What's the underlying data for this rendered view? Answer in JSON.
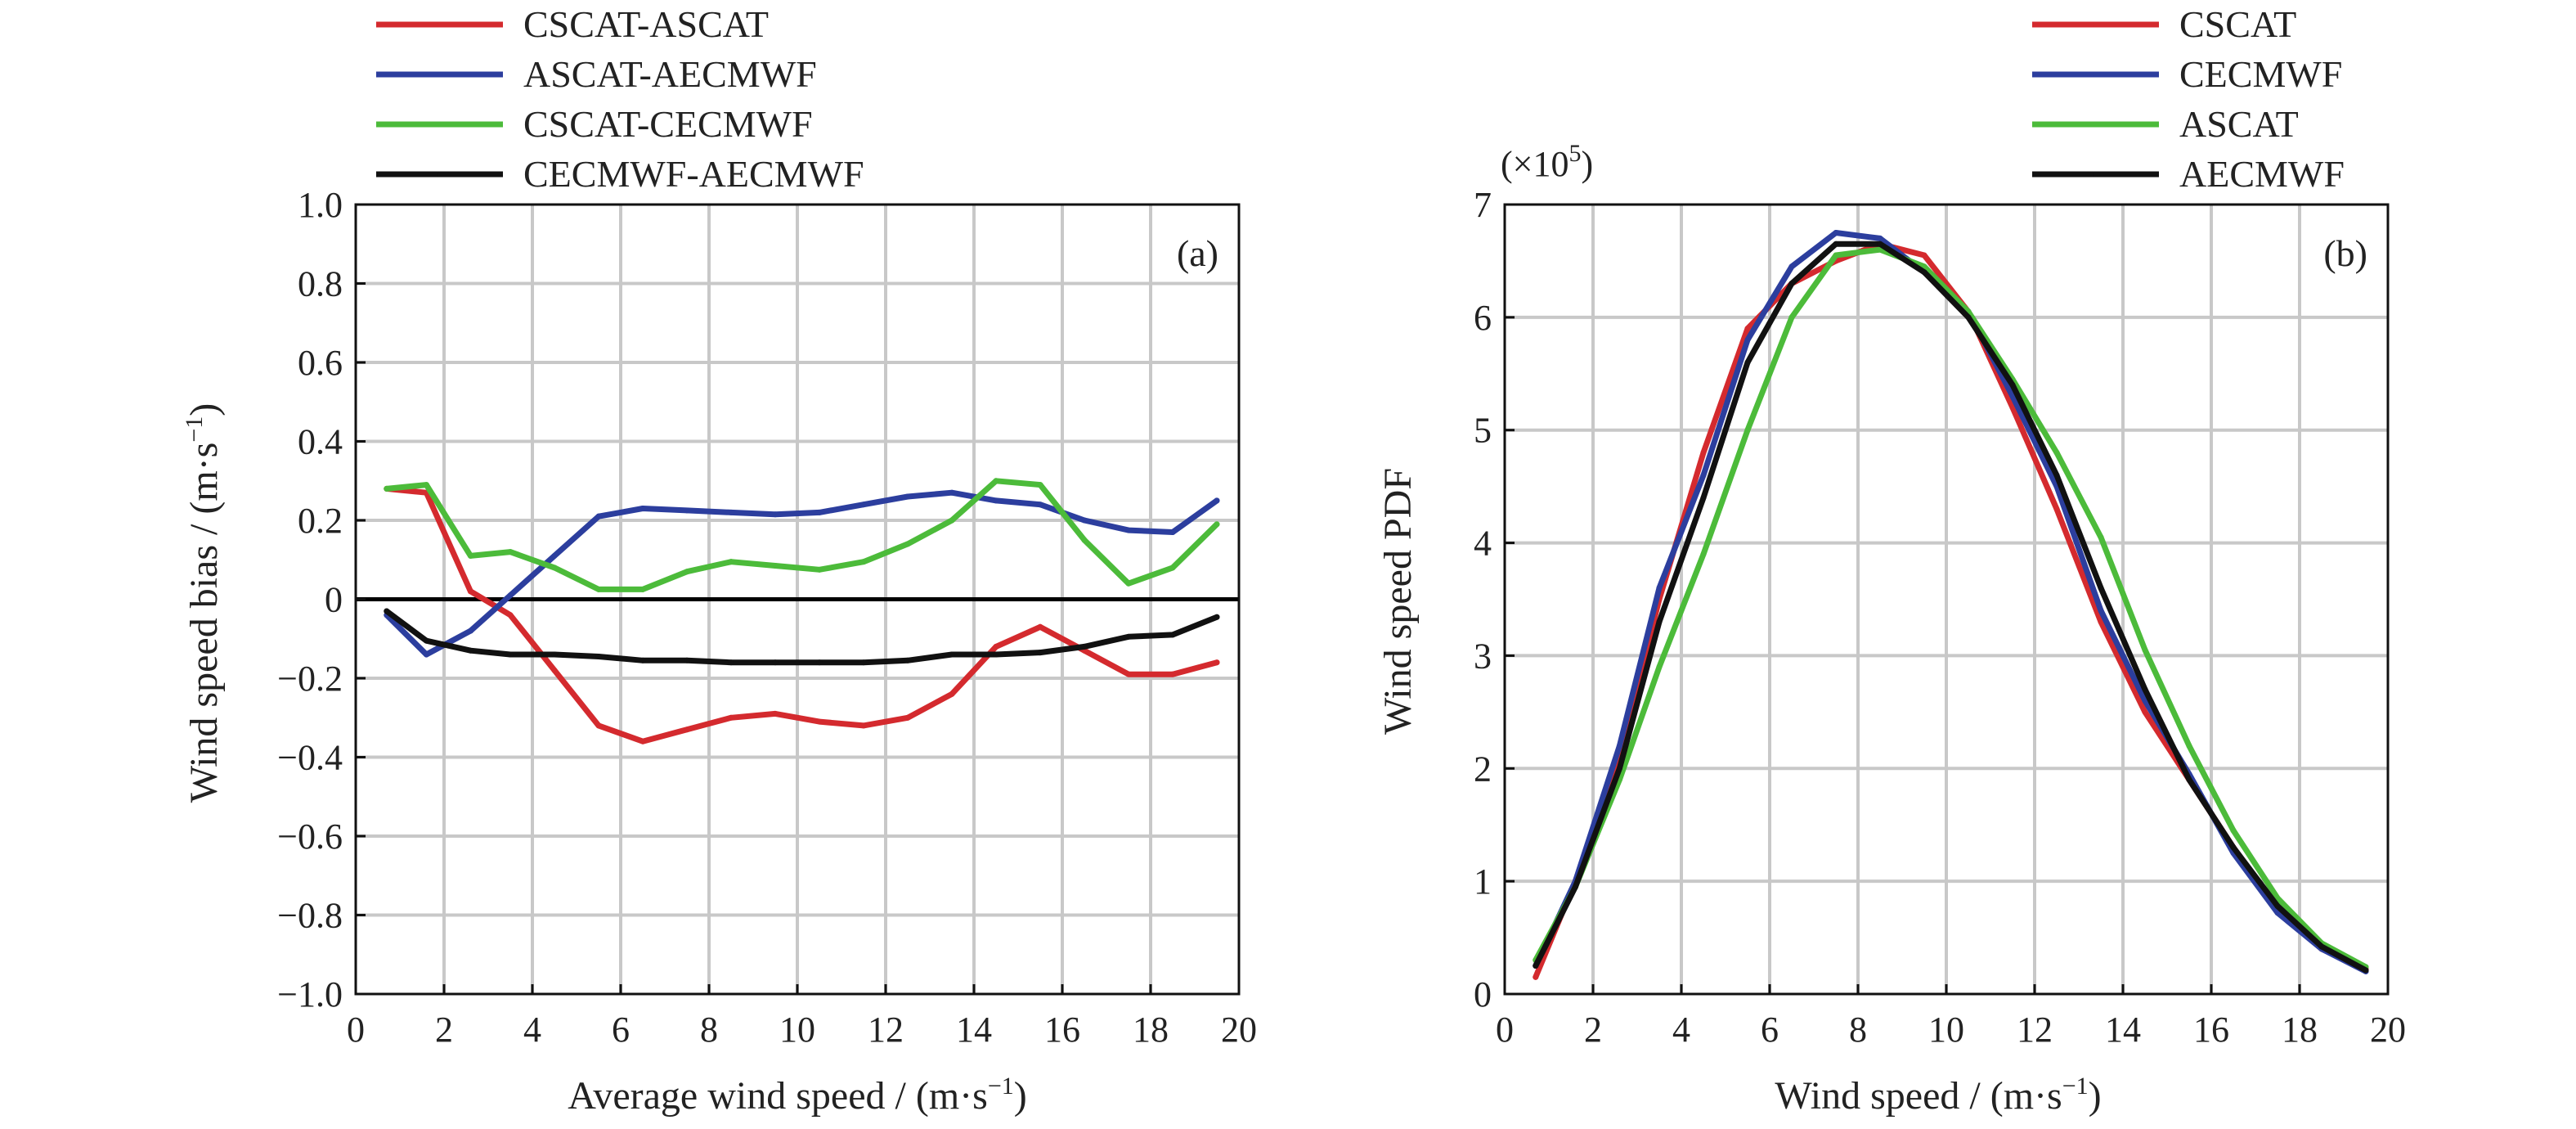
{
  "chart_data": [
    {
      "type": "line",
      "panel_label": "(a)",
      "xlabel": "Average wind speed / (m·s",
      "xlabel_sup": "−1",
      "xlabel_end": ")",
      "ylabel": "Wind speed bias / (m·s",
      "ylabel_sup": "−1",
      "ylabel_end": ")",
      "xlim": [
        0,
        20
      ],
      "ylim": [
        -1.0,
        1.0
      ],
      "x_ticks": [
        0,
        2,
        4,
        6,
        8,
        10,
        12,
        14,
        16,
        18,
        20
      ],
      "y_ticks": [
        -1.0,
        -0.8,
        -0.6,
        -0.4,
        -0.2,
        0,
        0.2,
        0.4,
        0.6,
        0.8,
        1.0
      ],
      "x_tick_labels": [
        "0",
        "2",
        "4",
        "6",
        "8",
        "10",
        "12",
        "14",
        "16",
        "18",
        "20"
      ],
      "y_tick_labels": [
        "−1.0",
        "−0.8",
        "−0.6",
        "−0.4",
        "−0.2",
        "0",
        "0.2",
        "0.4",
        "0.6",
        "0.8",
        "1.0"
      ],
      "grid": true,
      "zero_line": true,
      "legend_position": "above-left",
      "x": [
        0.7,
        1.6,
        2.6,
        3.5,
        4.5,
        5.5,
        6.5,
        7.5,
        8.5,
        9.5,
        10.5,
        11.5,
        12.5,
        13.5,
        14.5,
        15.5,
        16.5,
        17.5,
        18.5,
        19.5
      ],
      "series": [
        {
          "name": "CSCAT-ASCAT",
          "color": "#d42a2e",
          "values": [
            0.28,
            0.27,
            0.02,
            -0.04,
            -0.18,
            -0.32,
            -0.36,
            -0.33,
            -0.3,
            -0.29,
            -0.31,
            -0.32,
            -0.3,
            -0.24,
            -0.12,
            -0.07,
            -0.13,
            -0.19,
            -0.19,
            -0.16
          ]
        },
        {
          "name": "ASCAT-AECMWF",
          "color": "#2c3e9e",
          "values": [
            -0.04,
            -0.14,
            -0.08,
            0.01,
            0.11,
            0.21,
            0.23,
            0.225,
            0.22,
            0.215,
            0.22,
            0.24,
            0.26,
            0.27,
            0.25,
            0.24,
            0.2,
            0.175,
            0.17,
            0.25
          ]
        },
        {
          "name": "CSCAT-CECMWF",
          "color": "#4cbb3a",
          "values": [
            0.28,
            0.29,
            0.11,
            0.12,
            0.08,
            0.025,
            0.025,
            0.07,
            0.095,
            0.085,
            0.075,
            0.095,
            0.14,
            0.2,
            0.3,
            0.29,
            0.15,
            0.04,
            0.08,
            0.19
          ]
        },
        {
          "name": "CECMWF-AECMWF",
          "color": "#111111",
          "values": [
            -0.03,
            -0.105,
            -0.13,
            -0.14,
            -0.14,
            -0.145,
            -0.155,
            -0.155,
            -0.16,
            -0.16,
            -0.16,
            -0.16,
            -0.155,
            -0.14,
            -0.14,
            -0.135,
            -0.12,
            -0.095,
            -0.09,
            -0.045
          ]
        }
      ]
    },
    {
      "type": "line",
      "panel_label": "(b)",
      "xlabel": "Wind speed / (m·s",
      "xlabel_sup": "−1",
      "xlabel_end": ")",
      "ylabel": "Wind speed PDF",
      "y_multiplier_base": "(×10",
      "y_multiplier_exp": "5",
      "y_multiplier_end": ")",
      "xlim": [
        0,
        20
      ],
      "ylim": [
        0,
        7
      ],
      "x_ticks": [
        0,
        2,
        4,
        6,
        8,
        10,
        12,
        14,
        16,
        18,
        20
      ],
      "y_ticks": [
        0,
        1,
        2,
        3,
        4,
        5,
        6,
        7
      ],
      "x_tick_labels": [
        "0",
        "2",
        "4",
        "6",
        "8",
        "10",
        "12",
        "14",
        "16",
        "18",
        "20"
      ],
      "y_tick_labels": [
        "0",
        "1",
        "2",
        "3",
        "4",
        "5",
        "6",
        "7"
      ],
      "grid": true,
      "legend_position": "above-right",
      "x": [
        0.7,
        1.6,
        2.6,
        3.5,
        4.5,
        5.5,
        6.5,
        7.5,
        8.5,
        9.5,
        10.5,
        11.5,
        12.5,
        13.5,
        14.5,
        15.5,
        16.5,
        17.5,
        18.5,
        19.5
      ],
      "series": [
        {
          "name": "CSCAT",
          "color": "#d42a2e",
          "values": [
            0.15,
            1.0,
            2.1,
            3.5,
            4.8,
            5.9,
            6.3,
            6.5,
            6.65,
            6.55,
            6.05,
            5.2,
            4.3,
            3.3,
            2.5,
            1.9,
            1.3,
            0.75,
            0.4,
            0.22
          ]
        },
        {
          "name": "CECMWF",
          "color": "#2c3e9e",
          "values": [
            0.25,
            1.0,
            2.2,
            3.6,
            4.6,
            5.8,
            6.45,
            6.75,
            6.7,
            6.4,
            6.05,
            5.3,
            4.5,
            3.4,
            2.6,
            1.95,
            1.25,
            0.72,
            0.4,
            0.2
          ]
        },
        {
          "name": "ASCAT",
          "color": "#4cbb3a",
          "values": [
            0.3,
            0.95,
            1.9,
            2.9,
            3.9,
            5.0,
            6.0,
            6.55,
            6.6,
            6.45,
            6.05,
            5.45,
            4.8,
            4.05,
            3.05,
            2.2,
            1.45,
            0.85,
            0.45,
            0.24
          ]
        },
        {
          "name": "AECMWF",
          "color": "#111111",
          "values": [
            0.25,
            0.95,
            2.0,
            3.3,
            4.4,
            5.6,
            6.3,
            6.65,
            6.65,
            6.4,
            6.0,
            5.4,
            4.6,
            3.6,
            2.7,
            1.9,
            1.3,
            0.78,
            0.42,
            0.21
          ]
        }
      ]
    }
  ]
}
